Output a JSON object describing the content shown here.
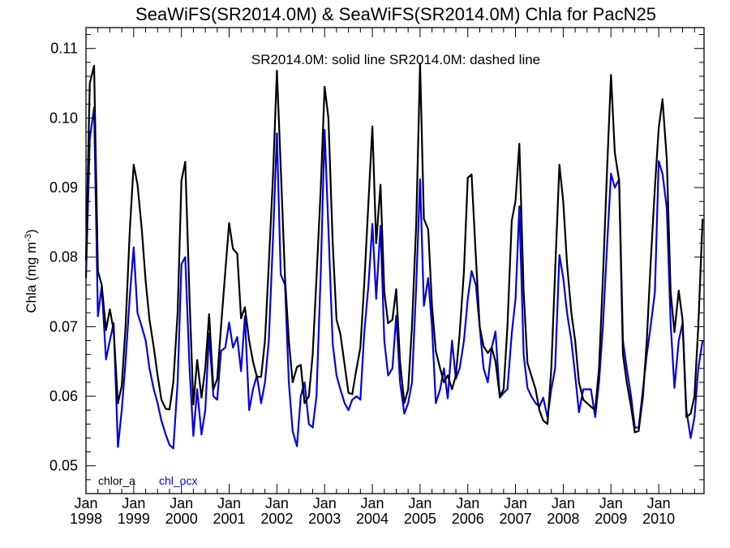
{
  "chart_data": {
    "type": "line",
    "title": "SeaWiFS(SR2014.0M) & SeaWiFS(SR2014.0M)  Chla for PacN25",
    "annotation": "SR2014.0M: solid line   SR2014.0M: dashed line",
    "ylabel": "Chla (mg m",
    "ylabel_sup": "-3",
    "ylabel_close": ")",
    "ylim": [
      0.046,
      0.113
    ],
    "xlim": [
      1998.0,
      2010.95
    ],
    "yticks": [
      "0.05",
      "0.06",
      "0.07",
      "0.08",
      "0.09",
      "0.10",
      "0.11"
    ],
    "xticks": [
      {
        "month": "Jan",
        "year": "1998"
      },
      {
        "month": "Jan",
        "year": "1999"
      },
      {
        "month": "Jan",
        "year": "2000"
      },
      {
        "month": "Jan",
        "year": "2001"
      },
      {
        "month": "Jan",
        "year": "2002"
      },
      {
        "month": "Jan",
        "year": "2003"
      },
      {
        "month": "Jan",
        "year": "2004"
      },
      {
        "month": "Jan",
        "year": "2005"
      },
      {
        "month": "Jan",
        "year": "2006"
      },
      {
        "month": "Jan",
        "year": "2007"
      },
      {
        "month": "Jan",
        "year": "2008"
      },
      {
        "month": "Jan",
        "year": "2009"
      },
      {
        "month": "Jan",
        "year": "2010"
      }
    ],
    "series": [
      {
        "name": "chlor_a",
        "color": "#000000",
        "x": [
          1998.0,
          1998.08,
          1998.17,
          1998.25,
          1998.33,
          1998.42,
          1998.5,
          1998.58,
          1998.67,
          1998.75,
          1998.83,
          1998.92,
          1999.0,
          1999.08,
          1999.17,
          1999.25,
          1999.33,
          1999.42,
          1999.5,
          1999.58,
          1999.67,
          1999.75,
          1999.83,
          1999.92,
          2000.0,
          2000.08,
          2000.17,
          2000.25,
          2000.33,
          2000.42,
          2000.5,
          2000.58,
          2000.67,
          2000.75,
          2000.83,
          2000.92,
          2001.0,
          2001.08,
          2001.17,
          2001.25,
          2001.33,
          2001.42,
          2001.5,
          2001.58,
          2001.67,
          2001.75,
          2001.83,
          2001.92,
          2002.0,
          2002.08,
          2002.17,
          2002.25,
          2002.33,
          2002.42,
          2002.5,
          2002.58,
          2002.67,
          2002.75,
          2002.83,
          2002.92,
          2003.0,
          2003.08,
          2003.17,
          2003.25,
          2003.33,
          2003.42,
          2003.5,
          2003.58,
          2003.67,
          2003.75,
          2003.83,
          2003.92,
          2004.0,
          2004.08,
          2004.17,
          2004.25,
          2004.33,
          2004.42,
          2004.5,
          2004.58,
          2004.67,
          2004.75,
          2004.83,
          2004.92,
          2005.0,
          2005.08,
          2005.17,
          2005.25,
          2005.33,
          2005.42,
          2005.5,
          2005.58,
          2005.67,
          2005.75,
          2005.83,
          2005.92,
          2006.0,
          2006.08,
          2006.17,
          2006.25,
          2006.33,
          2006.42,
          2006.5,
          2006.58,
          2006.67,
          2006.75,
          2006.83,
          2006.92,
          2007.0,
          2007.08,
          2007.17,
          2007.25,
          2007.33,
          2007.42,
          2007.5,
          2007.58,
          2007.67,
          2007.75,
          2007.83,
          2007.92,
          2008.0,
          2008.08,
          2008.17,
          2008.25,
          2008.33,
          2008.42,
          2008.5,
          2008.58,
          2008.67,
          2008.75,
          2008.83,
          2008.92,
          2009.0,
          2009.08,
          2009.17,
          2009.25,
          2009.33,
          2009.42,
          2009.5,
          2009.58,
          2009.67,
          2009.75,
          2009.83,
          2009.92,
          2010.0,
          2010.08,
          2010.17,
          2010.25,
          2010.33,
          2010.42,
          2010.5,
          2010.58,
          2010.67,
          2010.75,
          2010.83,
          2010.92
        ],
        "y": [
          0.0795,
          0.105,
          0.1075,
          0.078,
          0.076,
          0.0695,
          0.0725,
          0.0695,
          0.059,
          0.0615,
          0.07,
          0.084,
          0.0933,
          0.0905,
          0.084,
          0.0765,
          0.071,
          0.067,
          0.063,
          0.0595,
          0.0582,
          0.0581,
          0.062,
          0.072,
          0.091,
          0.0937,
          0.074,
          0.0588,
          0.0652,
          0.0598,
          0.064,
          0.0718,
          0.061,
          0.0625,
          0.07,
          0.078,
          0.0849,
          0.0812,
          0.0805,
          0.0712,
          0.0728,
          0.068,
          0.065,
          0.0628,
          0.0628,
          0.068,
          0.079,
          0.092,
          0.1068,
          0.093,
          0.077,
          0.068,
          0.062,
          0.0642,
          0.0645,
          0.059,
          0.06,
          0.066,
          0.077,
          0.09,
          0.1045,
          0.1,
          0.082,
          0.071,
          0.069,
          0.0645,
          0.0605,
          0.0603,
          0.064,
          0.067,
          0.076,
          0.088,
          0.0988,
          0.082,
          0.0904,
          0.075,
          0.0705,
          0.071,
          0.0754,
          0.065,
          0.059,
          0.061,
          0.07,
          0.085,
          0.1078,
          0.0855,
          0.084,
          0.073,
          0.0665,
          0.064,
          0.062,
          0.063,
          0.061,
          0.063,
          0.069,
          0.078,
          0.0914,
          0.0919,
          0.08,
          0.07,
          0.0672,
          0.0662,
          0.067,
          0.065,
          0.06,
          0.061,
          0.07,
          0.0852,
          0.0881,
          0.0963,
          0.075,
          0.0648,
          0.063,
          0.061,
          0.058,
          0.0565,
          0.056,
          0.064,
          0.078,
          0.0933,
          0.088,
          0.079,
          0.072,
          0.068,
          0.062,
          0.0595,
          0.059,
          0.0585,
          0.058,
          0.064,
          0.077,
          0.093,
          0.1062,
          0.095,
          0.091,
          0.066,
          0.062,
          0.0585,
          0.0548,
          0.055,
          0.06,
          0.068,
          0.079,
          0.09,
          0.0985,
          0.1027,
          0.094,
          0.075,
          0.0692,
          0.0752,
          0.071,
          0.057,
          0.0575,
          0.06,
          0.07,
          0.0855
        ]
      },
      {
        "name": "chl_ocx",
        "color": "#0000e0",
        "x": [
          1998.0,
          1998.08,
          1998.17,
          1998.25,
          1998.33,
          1998.42,
          1998.5,
          1998.58,
          1998.67,
          1998.75,
          1998.83,
          1998.92,
          1999.0,
          1999.08,
          1999.17,
          1999.25,
          1999.33,
          1999.42,
          1999.5,
          1999.58,
          1999.67,
          1999.75,
          1999.83,
          1999.92,
          2000.0,
          2000.08,
          2000.17,
          2000.25,
          2000.33,
          2000.42,
          2000.5,
          2000.58,
          2000.67,
          2000.75,
          2000.83,
          2000.92,
          2001.0,
          2001.08,
          2001.17,
          2001.25,
          2001.33,
          2001.42,
          2001.5,
          2001.58,
          2001.67,
          2001.75,
          2001.83,
          2001.92,
          2002.0,
          2002.08,
          2002.17,
          2002.25,
          2002.33,
          2002.42,
          2002.5,
          2002.58,
          2002.67,
          2002.75,
          2002.83,
          2002.92,
          2003.0,
          2003.08,
          2003.17,
          2003.25,
          2003.33,
          2003.42,
          2003.5,
          2003.58,
          2003.67,
          2003.75,
          2003.83,
          2003.92,
          2004.0,
          2004.08,
          2004.17,
          2004.25,
          2004.33,
          2004.42,
          2004.5,
          2004.58,
          2004.67,
          2004.75,
          2004.83,
          2004.92,
          2005.0,
          2005.08,
          2005.17,
          2005.25,
          2005.33,
          2005.42,
          2005.5,
          2005.58,
          2005.67,
          2005.75,
          2005.83,
          2005.92,
          2006.0,
          2006.08,
          2006.17,
          2006.25,
          2006.33,
          2006.42,
          2006.5,
          2006.58,
          2006.67,
          2006.75,
          2006.83,
          2006.92,
          2007.0,
          2007.08,
          2007.17,
          2007.25,
          2007.33,
          2007.42,
          2007.5,
          2007.58,
          2007.67,
          2007.75,
          2007.83,
          2007.92,
          2008.0,
          2008.08,
          2008.17,
          2008.25,
          2008.33,
          2008.42,
          2008.5,
          2008.58,
          2008.67,
          2008.75,
          2008.83,
          2008.92,
          2009.0,
          2009.08,
          2009.17,
          2009.25,
          2009.33,
          2009.42,
          2009.5,
          2009.58,
          2009.67,
          2009.75,
          2009.83,
          2009.92,
          2010.0,
          2010.08,
          2010.17,
          2010.25,
          2010.33,
          2010.42,
          2010.5,
          2010.58,
          2010.67,
          2010.75,
          2010.83,
          2010.92
        ],
        "y": [
          0.077,
          0.097,
          0.1015,
          0.0715,
          0.0758,
          0.0653,
          0.068,
          0.0705,
          0.0527,
          0.058,
          0.065,
          0.0745,
          0.0814,
          0.072,
          0.07,
          0.068,
          0.064,
          0.061,
          0.059,
          0.0565,
          0.0545,
          0.053,
          0.0525,
          0.062,
          0.079,
          0.08,
          0.064,
          0.0543,
          0.061,
          0.0545,
          0.058,
          0.069,
          0.06,
          0.0595,
          0.0665,
          0.067,
          0.0706,
          0.067,
          0.0685,
          0.0636,
          0.0715,
          0.058,
          0.061,
          0.063,
          0.059,
          0.062,
          0.068,
          0.083,
          0.0978,
          0.0775,
          0.076,
          0.062,
          0.055,
          0.0528,
          0.06,
          0.062,
          0.056,
          0.0555,
          0.06,
          0.078,
          0.0983,
          0.084,
          0.0675,
          0.063,
          0.061,
          0.059,
          0.058,
          0.0595,
          0.06,
          0.0595,
          0.069,
          0.076,
          0.0848,
          0.074,
          0.0845,
          0.068,
          0.063,
          0.064,
          0.0716,
          0.062,
          0.0575,
          0.059,
          0.062,
          0.076,
          0.0912,
          0.073,
          0.077,
          0.07,
          0.059,
          0.061,
          0.064,
          0.0597,
          0.068,
          0.0625,
          0.064,
          0.068,
          0.074,
          0.078,
          0.076,
          0.07,
          0.064,
          0.062,
          0.067,
          0.0693,
          0.0598,
          0.0605,
          0.061,
          0.069,
          0.074,
          0.0873,
          0.066,
          0.0612,
          0.06,
          0.059,
          0.0585,
          0.0598,
          0.057,
          0.061,
          0.064,
          0.0803,
          0.077,
          0.072,
          0.068,
          0.063,
          0.0577,
          0.061,
          0.061,
          0.061,
          0.057,
          0.062,
          0.07,
          0.082,
          0.092,
          0.09,
          0.0912,
          0.068,
          0.064,
          0.06,
          0.0555,
          0.0555,
          0.061,
          0.066,
          0.07,
          0.075,
          0.0938,
          0.092,
          0.087,
          0.0705,
          0.0612,
          0.068,
          0.0705,
          0.058,
          0.054,
          0.057,
          0.064,
          0.068
        ]
      }
    ],
    "grid": false,
    "legend_position": "bottom-left"
  }
}
